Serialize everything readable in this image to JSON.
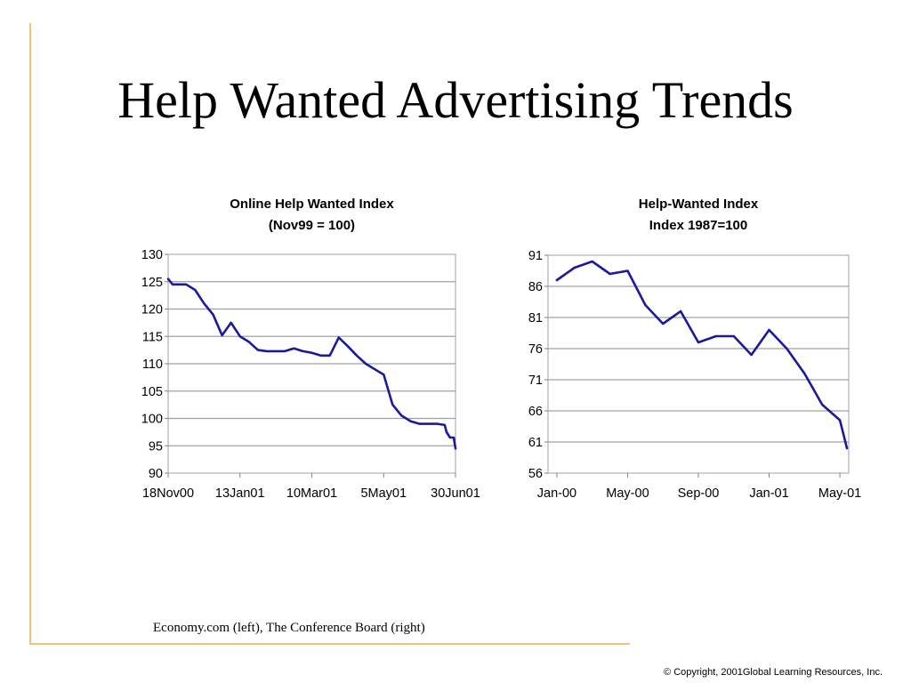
{
  "slide": {
    "title": "Help Wanted Advertising Trends",
    "caption": "Economy.com (left), The Conference Board (right)",
    "copyright": "© Copyright, 2001Global Learning Resources, Inc.",
    "accent_color": "#f5c27a"
  },
  "chart_data": [
    {
      "type": "line",
      "title": "Online Help Wanted Index",
      "subtitle": "(Nov99 = 100)",
      "xlabel": "",
      "ylabel": "",
      "ylim": [
        90,
        130
      ],
      "yticks": [
        90,
        95,
        100,
        105,
        110,
        115,
        120,
        125,
        130
      ],
      "xlim": [
        0,
        32
      ],
      "x_tick_labels": [
        "18Nov00",
        "13Jan01",
        "10Mar01",
        "5May01",
        "30Jun01"
      ],
      "x_tick_positions": [
        0,
        8,
        16,
        24,
        32
      ],
      "grid": "horizontal",
      "line_color": "#1a1a9c",
      "series": [
        {
          "values": [
            [
              0,
              125.5
            ],
            [
              0.5,
              124.5
            ],
            [
              2,
              124.5
            ],
            [
              3,
              123.5
            ],
            [
              4,
              121
            ],
            [
              5,
              119
            ],
            [
              6,
              115.2
            ],
            [
              7,
              117.5
            ],
            [
              8,
              115
            ],
            [
              9,
              114
            ],
            [
              10,
              112.5
            ],
            [
              11,
              112.3
            ],
            [
              12,
              112.3
            ],
            [
              13,
              112.3
            ],
            [
              14,
              112.8
            ],
            [
              15,
              112.3
            ],
            [
              16,
              112
            ],
            [
              17,
              111.5
            ],
            [
              18,
              111.5
            ],
            [
              19,
              114.8
            ],
            [
              20,
              113.2
            ],
            [
              21,
              111.5
            ],
            [
              22,
              110
            ],
            [
              23,
              109
            ],
            [
              24,
              108
            ],
            [
              25,
              102.5
            ],
            [
              26,
              100.5
            ],
            [
              27,
              99.5
            ],
            [
              28,
              99
            ],
            [
              29,
              99
            ],
            [
              30,
              99
            ],
            [
              30.8,
              98.8
            ],
            [
              31,
              97.5
            ],
            [
              31.4,
              96.5
            ],
            [
              31.8,
              96.5
            ],
            [
              32,
              94.5
            ]
          ]
        }
      ]
    },
    {
      "type": "line",
      "title": "Help-Wanted Index",
      "subtitle": "Index 1987=100",
      "xlabel": "",
      "ylabel": "",
      "ylim": [
        56,
        91
      ],
      "yticks": [
        56,
        61,
        66,
        71,
        76,
        81,
        86,
        91
      ],
      "xlim": [
        -0.5,
        16.5
      ],
      "x_tick_labels": [
        "Jan-00",
        "May-00",
        "Sep-00",
        "Jan-01",
        "May-01"
      ],
      "x_tick_positions": [
        0,
        4,
        8,
        12,
        16
      ],
      "grid": "horizontal",
      "line_color": "#1a1a9c",
      "series": [
        {
          "values": [
            [
              0,
              87
            ],
            [
              1,
              89
            ],
            [
              2,
              90
            ],
            [
              3,
              88
            ],
            [
              4,
              88.5
            ],
            [
              5,
              83
            ],
            [
              6,
              80
            ],
            [
              7,
              82
            ],
            [
              8,
              77
            ],
            [
              9,
              78
            ],
            [
              10,
              78
            ],
            [
              11,
              75
            ],
            [
              12,
              79
            ],
            [
              13,
              76
            ],
            [
              14,
              72
            ],
            [
              15,
              67
            ],
            [
              16,
              64.5
            ],
            [
              16.4,
              60
            ]
          ]
        }
      ]
    }
  ]
}
